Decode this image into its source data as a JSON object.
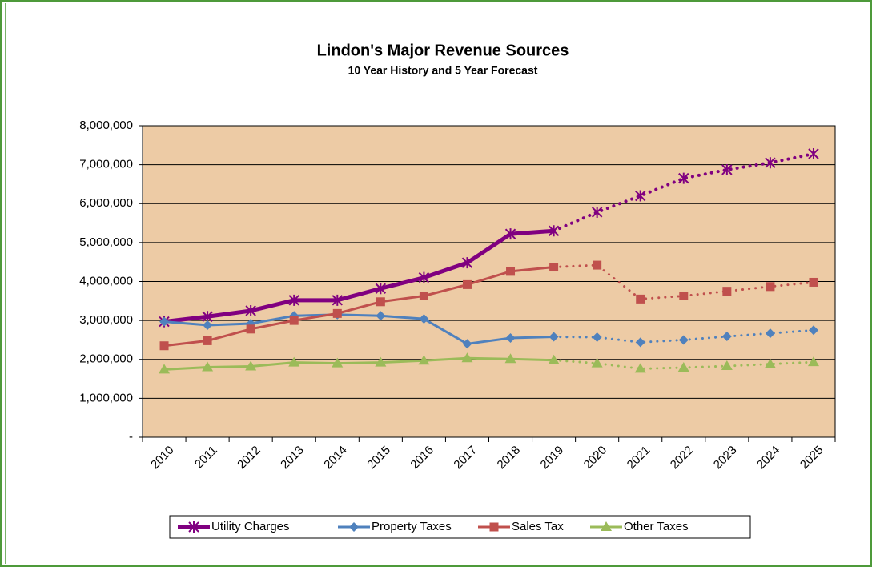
{
  "chart_data": {
    "type": "line",
    "title": "Lindon's Major Revenue Sources",
    "subtitle": "10 Year History and 5 Year Forecast",
    "categories": [
      "2010",
      "2011",
      "2012",
      "2013",
      "2014",
      "2015",
      "2016",
      "2017",
      "2018",
      "2019",
      "2020",
      "2021",
      "2022",
      "2023",
      "2024",
      "2025"
    ],
    "dotted_from": "2019",
    "series": [
      {
        "name": "Utility Charges",
        "color": "#800080",
        "marker": "star",
        "width": 5,
        "values": [
          2970000,
          3100000,
          3250000,
          3520000,
          3520000,
          3820000,
          4100000,
          4480000,
          5220000,
          5300000,
          5780000,
          6200000,
          6650000,
          6870000,
          7050000,
          7280000
        ]
      },
      {
        "name": "Property Taxes",
        "color": "#4F81BD",
        "marker": "diamond",
        "width": 3,
        "values": [
          2970000,
          2880000,
          2920000,
          3120000,
          3150000,
          3120000,
          3040000,
          2400000,
          2550000,
          2580000,
          2570000,
          2440000,
          2500000,
          2590000,
          2670000,
          2750000
        ]
      },
      {
        "name": "Sales Tax",
        "color": "#C0504D",
        "marker": "square",
        "width": 3,
        "values": [
          2350000,
          2480000,
          2780000,
          3000000,
          3180000,
          3480000,
          3630000,
          3920000,
          4260000,
          4370000,
          4420000,
          3550000,
          3630000,
          3750000,
          3870000,
          3980000
        ]
      },
      {
        "name": "Other Taxes",
        "color": "#9BBB59",
        "marker": "triangle",
        "width": 3,
        "values": [
          1740000,
          1800000,
          1820000,
          1920000,
          1900000,
          1920000,
          1970000,
          2030000,
          2010000,
          1980000,
          1900000,
          1760000,
          1790000,
          1830000,
          1880000,
          1930000
        ]
      }
    ],
    "ylim": [
      0,
      8000000
    ],
    "yticks": [
      {
        "value": 0,
        "label": "-"
      },
      {
        "value": 1000000,
        "label": "1,000,000"
      },
      {
        "value": 2000000,
        "label": "2,000,000"
      },
      {
        "value": 3000000,
        "label": "3,000,000"
      },
      {
        "value": 4000000,
        "label": "4,000,000"
      },
      {
        "value": 5000000,
        "label": "5,000,000"
      },
      {
        "value": 6000000,
        "label": "6,000,000"
      },
      {
        "value": 7000000,
        "label": "7,000,000"
      },
      {
        "value": 8000000,
        "label": "8,000,000"
      }
    ],
    "grid": true,
    "plot_color": "#EDCBA5",
    "legend": "bottom"
  }
}
